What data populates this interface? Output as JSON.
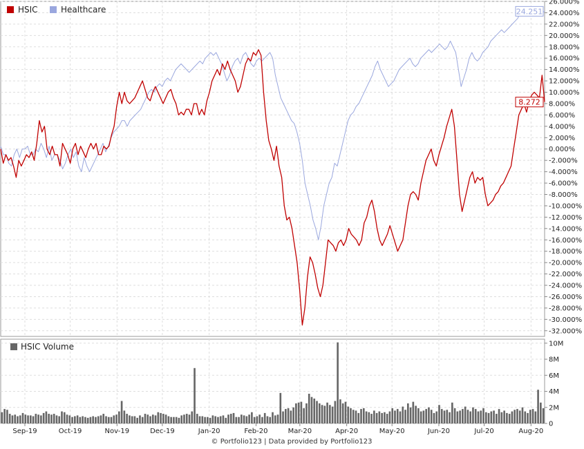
{
  "chart_data": [
    {
      "type": "line",
      "ylim": [
        -33,
        26
      ],
      "y_ticks": [
        26,
        24,
        22,
        20,
        18,
        16,
        14,
        12,
        10,
        8,
        6,
        4,
        2,
        0,
        -2,
        -4,
        -6,
        -8,
        -10,
        -12,
        -14,
        -16,
        -18,
        -20,
        -22,
        -24,
        -26,
        -28,
        -30,
        -32
      ],
      "y_tick_labels": [
        "26.000%",
        "24.000%",
        "22.000%",
        "20.000%",
        "18.000%",
        "16.000%",
        "14.000%",
        "12.000%",
        "10.000%",
        "8.000%",
        "6.000%",
        "4.000%",
        "2.000%",
        "0.000%",
        "-2.000%",
        "-4.000%",
        "-6.000%",
        "-8.000%",
        "-10.000%",
        "-12.000%",
        "-14.000%",
        "-16.000%",
        "-18.000%",
        "-20.000%",
        "-22.000%",
        "-24.000%",
        "-26.000%",
        "-28.000%",
        "-30.000%",
        "-32.000%"
      ],
      "grid": true,
      "legend_position": "top-left",
      "series": [
        {
          "name": "HSIC",
          "color": "#c00000",
          "last_label": "8.272",
          "values": [
            0.0,
            -2.5,
            -1.0,
            -2.0,
            -1.5,
            -3.0,
            -5.0,
            -2.0,
            -3.0,
            -2.0,
            -1.0,
            -1.5,
            -0.5,
            -2.0,
            1.0,
            5.0,
            3.0,
            4.0,
            0.0,
            -1.0,
            0.5,
            -1.0,
            -1.0,
            -3.0,
            1.0,
            0.0,
            -1.0,
            -2.5,
            0.0,
            1.0,
            -1.0,
            0.5,
            -0.5,
            -1.5,
            0.0,
            1.0,
            0.0,
            1.0,
            -1.0,
            -1.0,
            0.5,
            0.0,
            0.5,
            2.5,
            4.0,
            7.5,
            10.0,
            8.0,
            10.0,
            8.5,
            8.0,
            8.5,
            9.0,
            10.0,
            11.0,
            12.0,
            10.5,
            9.0,
            8.5,
            10.0,
            11.0,
            10.0,
            9.0,
            8.0,
            9.0,
            10.0,
            10.5,
            9.0,
            8.0,
            6.0,
            6.5,
            6.0,
            7.0,
            7.0,
            6.0,
            8.0,
            8.0,
            6.0,
            7.0,
            6.0,
            8.5,
            10.0,
            12.0,
            13.0,
            14.0,
            13.0,
            15.0,
            14.0,
            15.5,
            14.0,
            13.0,
            12.0,
            10.0,
            11.0,
            13.0,
            15.0,
            16.0,
            15.5,
            17.0,
            16.5,
            17.5,
            16.5,
            10.0,
            5.0,
            1.5,
            0.0,
            -2.0,
            0.5,
            -3.0,
            -5.0,
            -10.0,
            -12.5,
            -12.0,
            -14.0,
            -17.0,
            -20.0,
            -25.0,
            -31.0,
            -28.0,
            -22.5,
            -19.0,
            -20.0,
            -22.0,
            -24.5,
            -26.0,
            -24.0,
            -20.0,
            -16.0,
            -16.5,
            -17.0,
            -18.0,
            -16.5,
            -16.0,
            -17.0,
            -16.0,
            -14.0,
            -15.0,
            -15.5,
            -16.0,
            -17.0,
            -16.0,
            -13.0,
            -12.0,
            -10.0,
            -9.0,
            -11.0,
            -14.0,
            -16.0,
            -17.0,
            -16.0,
            -15.0,
            -13.5,
            -15.0,
            -16.5,
            -18.0,
            -17.0,
            -16.0,
            -13.0,
            -10.0,
            -8.0,
            -7.5,
            -8.0,
            -9.0,
            -6.0,
            -4.0,
            -2.0,
            -1.0,
            0.0,
            -2.0,
            -3.0,
            -1.0,
            0.5,
            2.0,
            4.0,
            5.5,
            7.0,
            4.0,
            -2.0,
            -8.0,
            -11.0,
            -9.0,
            -7.0,
            -5.0,
            -4.0,
            -6.0,
            -5.0,
            -5.5,
            -5.0,
            -8.0,
            -10.0,
            -9.5,
            -9.0,
            -8.0,
            -7.5,
            -6.5,
            -6.0,
            -5.0,
            -4.0,
            -3.0,
            0.0,
            3.0,
            6.0,
            7.0,
            8.0,
            6.5,
            8.5,
            9.5,
            10.0,
            9.5,
            9.0,
            13.0,
            8.272
          ]
        },
        {
          "name": "Healthcare",
          "color": "#9aa7de",
          "last_label": "24.251",
          "values": [
            0.5,
            -1.0,
            -1.0,
            -2.5,
            -3.0,
            -1.0,
            0.0,
            -1.5,
            0.0,
            0.0,
            0.5,
            -1.0,
            -1.0,
            0.0,
            -0.5,
            1.0,
            0.0,
            -1.5,
            0.5,
            -2.0,
            -1.0,
            -1.0,
            -2.0,
            -3.5,
            -2.5,
            -1.0,
            0.0,
            -1.5,
            -0.5,
            -3.0,
            -4.0,
            -1.5,
            -3.0,
            -4.0,
            -3.0,
            -2.0,
            -1.0,
            0.0,
            1.0,
            -0.5,
            0.5,
            2.0,
            3.0,
            3.5,
            4.0,
            5.0,
            5.0,
            4.0,
            5.0,
            5.5,
            6.0,
            6.5,
            7.0,
            8.0,
            9.0,
            10.0,
            10.5,
            10.0,
            11.0,
            11.5,
            11.0,
            12.0,
            12.5,
            12.0,
            13.0,
            14.0,
            14.5,
            15.0,
            14.5,
            14.0,
            13.5,
            14.0,
            14.5,
            15.0,
            15.5,
            15.0,
            16.0,
            16.5,
            17.0,
            16.5,
            17.0,
            16.0,
            15.0,
            13.5,
            12.0,
            13.0,
            14.5,
            15.5,
            16.0,
            15.0,
            16.5,
            17.0,
            16.0,
            15.0,
            14.5,
            15.5,
            16.0,
            15.5,
            16.0,
            16.5,
            17.0,
            16.0,
            13.0,
            11.0,
            9.0,
            8.0,
            7.0,
            6.0,
            5.0,
            4.5,
            3.0,
            1.0,
            -2.0,
            -6.0,
            -8.0,
            -10.0,
            -12.5,
            -14.0,
            -16.0,
            -13.5,
            -10.0,
            -8.0,
            -6.0,
            -5.0,
            -2.5,
            -3.0,
            -1.0,
            1.0,
            3.0,
            5.0,
            6.0,
            6.5,
            7.5,
            8.0,
            9.0,
            10.0,
            11.0,
            12.0,
            13.0,
            14.5,
            15.5,
            14.0,
            13.0,
            12.0,
            11.0,
            11.5,
            12.0,
            13.0,
            14.0,
            14.5,
            15.0,
            15.5,
            16.0,
            15.0,
            14.5,
            15.0,
            16.0,
            16.5,
            17.0,
            17.5,
            17.0,
            17.5,
            18.0,
            18.5,
            18.0,
            17.5,
            18.0,
            19.0,
            18.0,
            17.0,
            14.0,
            11.0,
            12.5,
            14.0,
            16.0,
            17.0,
            16.0,
            15.5,
            16.0,
            17.0,
            17.5,
            18.0,
            19.0,
            19.5,
            20.0,
            20.5,
            21.0,
            20.5,
            21.0,
            21.5,
            22.0,
            22.5,
            23.0,
            24.0,
            24.5,
            25.0,
            24.5,
            24.0,
            24.5,
            23.5,
            24.5,
            24.0,
            24.251
          ]
        }
      ]
    },
    {
      "type": "bar",
      "ylim": [
        0,
        10500000
      ],
      "y_ticks": [
        0,
        2000000,
        4000000,
        6000000,
        8000000,
        10000000
      ],
      "y_tick_labels": [
        "0",
        "2M",
        "4M",
        "6M",
        "8M",
        "10M"
      ],
      "grid": true,
      "legend_position": "top-left",
      "series": [
        {
          "name": "HSIC Volume",
          "color": "#666666",
          "values": [
            1400000,
            1800000,
            1700000,
            1200000,
            1000000,
            1100000,
            900000,
            1000000,
            1300000,
            1100000,
            1000000,
            1000000,
            900000,
            1200000,
            1100000,
            1000000,
            1300000,
            1500000,
            1200000,
            1100000,
            1200000,
            1000000,
            900000,
            1500000,
            1400000,
            1100000,
            1000000,
            800000,
            900000,
            1000000,
            800000,
            900000,
            800000,
            700000,
            800000,
            900000,
            800000,
            900000,
            1000000,
            1200000,
            900000,
            800000,
            800000,
            1000000,
            1100000,
            1500000,
            2800000,
            1600000,
            1200000,
            1000000,
            900000,
            900000,
            700000,
            1000000,
            800000,
            1200000,
            1100000,
            900000,
            1100000,
            1000000,
            1400000,
            1300000,
            1200000,
            1100000,
            900000,
            800000,
            800000,
            800000,
            700000,
            1000000,
            1100000,
            1200000,
            1100000,
            1500000,
            6900000,
            1200000,
            900000,
            900000,
            800000,
            800000,
            700000,
            1000000,
            900000,
            800000,
            900000,
            1000000,
            700000,
            1100000,
            1200000,
            1300000,
            800000,
            800000,
            1100000,
            1000000,
            900000,
            1100000,
            1400000,
            800000,
            900000,
            1100000,
            800000,
            1300000,
            900000,
            800000,
            1400000,
            1000000,
            1100000,
            3800000,
            1500000,
            1800000,
            1900000,
            1600000,
            2000000,
            2500000,
            2600000,
            2700000,
            1900000,
            2500000,
            3700000,
            3300000,
            3100000,
            2800000,
            2500000,
            2300000,
            2200000,
            2600000,
            2300000,
            2100000,
            2800000,
            10100000,
            3000000,
            2500000,
            2700000,
            2100000,
            1900000,
            1700000,
            1600000,
            1300000,
            1800000,
            1900000,
            1500000,
            1400000,
            1200000,
            1600000,
            1300000,
            1500000,
            1300000,
            1400000,
            1200000,
            1500000,
            1900000,
            1600000,
            1800000,
            1500000,
            2100000,
            1700000,
            2500000,
            2000000,
            2700000,
            2200000,
            1900000,
            1500000,
            1600000,
            1800000,
            2000000,
            1700000,
            1300000,
            1500000,
            2300000,
            1800000,
            1600000,
            1700000,
            1400000,
            2600000,
            1900000,
            1500000,
            1600000,
            1800000,
            2100000,
            1700000,
            1500000,
            2000000,
            1800000,
            1500000,
            1600000,
            1900000,
            1400000,
            1300000,
            1500000,
            1600000,
            1200000,
            1800000,
            1400000,
            1600000,
            1300000,
            1200000,
            1500000,
            1700000,
            1800000,
            1600000,
            2000000,
            1500000,
            1300000,
            1700000,
            1800000,
            1500000,
            4200000,
            2600000,
            1900000
          ]
        }
      ]
    }
  ],
  "x_axis": {
    "tick_labels": [
      "Sep-19",
      "Oct-19",
      "Nov-19",
      "Dec-19",
      "Jan-20",
      "Feb-20",
      "Mar-20",
      "Apr-20",
      "May-20",
      "Jun-20",
      "Jul-20",
      "Aug-20"
    ],
    "tick_dates": [
      "2019-09-01",
      "2019-10-01",
      "2019-11-01",
      "2019-12-01",
      "2020-01-01",
      "2020-02-01",
      "2020-03-01",
      "2020-04-01",
      "2020-05-01",
      "2020-06-01",
      "2020-07-01",
      "2020-08-01"
    ]
  },
  "footer": {
    "text": "© Portfolio123 | Data provided by Portfolio123"
  }
}
